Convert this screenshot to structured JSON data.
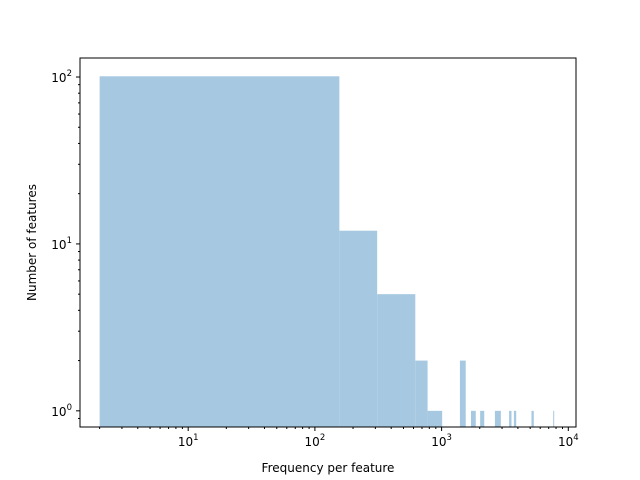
{
  "chart_data": {
    "type": "bar",
    "subtype": "histogram",
    "xlabel": "Frequency per feature",
    "ylabel": "Number of features",
    "x_scale": "log",
    "y_scale": "log",
    "xlim": [
      1.4,
      11500
    ],
    "ylim": [
      0.8,
      130
    ],
    "grid": false,
    "bar_color": "#a6c8e0",
    "x_ticks": [
      {
        "value": 10,
        "base": "10",
        "exp": "1"
      },
      {
        "value": 100,
        "base": "10",
        "exp": "2"
      },
      {
        "value": 1000,
        "base": "10",
        "exp": "3"
      },
      {
        "value": 10000,
        "base": "10",
        "exp": "4"
      }
    ],
    "y_ticks": [
      {
        "value": 1,
        "base": "10",
        "exp": "0"
      },
      {
        "value": 10,
        "base": "10",
        "exp": "1"
      },
      {
        "value": 100,
        "base": "10",
        "exp": "2"
      }
    ],
    "bars": [
      {
        "x0": 2,
        "x1": 156,
        "count": 101
      },
      {
        "x0": 156,
        "x1": 310,
        "count": 12
      },
      {
        "x0": 310,
        "x1": 620,
        "count": 5
      },
      {
        "x0": 620,
        "x1": 775,
        "count": 2
      },
      {
        "x0": 775,
        "x1": 1010,
        "count": 1
      },
      {
        "x0": 1395,
        "x1": 1550,
        "count": 2
      },
      {
        "x0": 1705,
        "x1": 1860,
        "count": 1
      },
      {
        "x0": 2015,
        "x1": 2170,
        "count": 1
      },
      {
        "x0": 2635,
        "x1": 2935,
        "count": 1
      },
      {
        "x0": 3410,
        "x1": 3560,
        "count": 1
      },
      {
        "x0": 3720,
        "x1": 3880,
        "count": 1
      },
      {
        "x0": 5120,
        "x1": 5340,
        "count": 1
      },
      {
        "x0": 7600,
        "x1": 7680,
        "count": 1
      }
    ]
  }
}
